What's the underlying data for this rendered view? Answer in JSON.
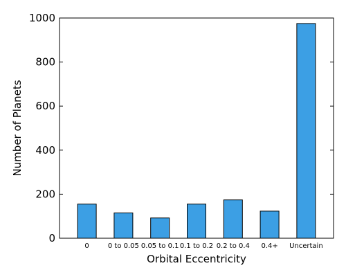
{
  "chart_data": {
    "type": "bar",
    "title": "",
    "xlabel": "Orbital Eccentricity",
    "ylabel": "Number of Planets",
    "categories": [
      "0",
      "0 to 0.05",
      "0.05 to 0.1",
      "0.1 to 0.2",
      "0.2 to 0.4",
      "0.4+",
      "Uncertain"
    ],
    "values": [
      155,
      115,
      92,
      155,
      174,
      123,
      975
    ],
    "ylim": [
      0,
      1000
    ],
    "yticks": [
      0,
      200,
      400,
      600,
      800,
      1000
    ],
    "grid": false,
    "bar_color": "#3c9fe4",
    "edge_color": "#000000"
  }
}
